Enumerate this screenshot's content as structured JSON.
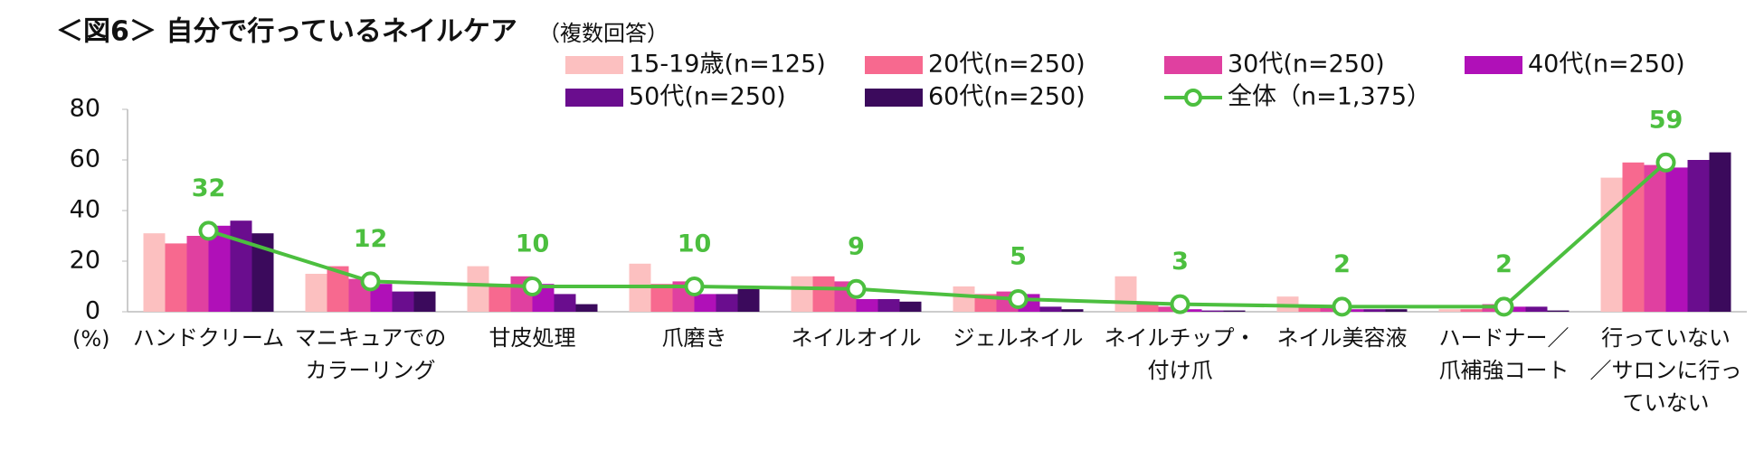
{
  "chart_data": {
    "type": "bar_line",
    "title": "＜図6＞ 自分で行っているネイルケア",
    "subtitle": "（複数回答）",
    "y_unit": "(%)",
    "categories": [
      "ハンドクリーム",
      "マニキュアでの\nカラーリング",
      "甘皮処理",
      "爪磨き",
      "ネイルオイル",
      "ジェルネイル",
      "ネイルチップ・\n付け爪",
      "ネイル美容液",
      "ハードナー／\n爪補強コート",
      "行っていない\n／サロンに行っ\nていない"
    ],
    "series": [
      {
        "name": "15-19歳(n=125)",
        "color": "#fcc0c0",
        "values": [
          31,
          15,
          18,
          19,
          14,
          10,
          14,
          6,
          1,
          53
        ]
      },
      {
        "name": "20代(n=250)",
        "color": "#f7698f",
        "values": [
          27,
          18,
          11,
          11,
          14,
          7,
          3,
          2,
          1,
          59
        ]
      },
      {
        "name": "30代(n=250)",
        "color": "#e040a0",
        "values": [
          30,
          13,
          14,
          12,
          12,
          8,
          2,
          2,
          3,
          58
        ]
      },
      {
        "name": "40代(n=250)",
        "color": "#b010b8",
        "values": [
          34,
          11,
          11,
          7,
          5,
          7,
          1,
          1,
          2,
          57
        ]
      },
      {
        "name": "50代(n=250)",
        "color": "#6a0d8e",
        "values": [
          36,
          8,
          7,
          7,
          5,
          2,
          0.5,
          1,
          2,
          60
        ]
      },
      {
        "name": "60代(n=250)",
        "color": "#3b0a5c",
        "values": [
          31,
          8,
          3,
          9,
          4,
          1,
          0.5,
          1,
          0.5,
          63
        ]
      },
      {
        "name": "全体（n=1,375）",
        "color": "#4cbf3f",
        "line": true,
        "values": [
          32,
          12,
          10,
          10,
          9,
          5,
          3,
          2,
          2,
          59
        ]
      }
    ],
    "ylim": [
      0,
      80
    ],
    "yticks": [
      0,
      20,
      40,
      60,
      80
    ],
    "grid": false
  }
}
